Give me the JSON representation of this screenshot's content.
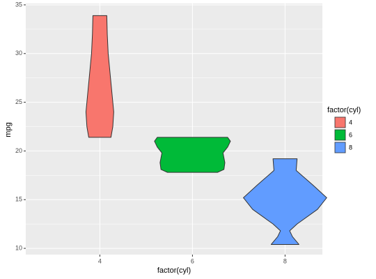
{
  "chart_data": {
    "type": "violin",
    "x_label": "factor(cyl)",
    "y_label": "mpg",
    "categories": [
      "4",
      "6",
      "8"
    ],
    "legend_title": "factor(cyl)",
    "legend_position": "right",
    "ylim": [
      9.36,
      35.14
    ],
    "yticks": [
      10,
      15,
      20,
      25,
      30,
      35
    ],
    "grid": true,
    "minor_grid": true,
    "series": [
      {
        "name": "4",
        "color": "#F8766D",
        "y": [
          21.4,
          22.5,
          24,
          26,
          28,
          30,
          32,
          33.9
        ],
        "width": [
          0.12,
          0.14,
          0.15,
          0.13,
          0.11,
          0.09,
          0.08,
          0.075
        ]
      },
      {
        "name": "6",
        "color": "#00BA38",
        "y": [
          17.8,
          18.1,
          18.8,
          19.8,
          20.4,
          21.0,
          21.4
        ],
        "width": [
          0.27,
          0.34,
          0.35,
          0.33,
          0.38,
          0.41,
          0.38
        ]
      },
      {
        "name": "8",
        "color": "#619CFF",
        "y": [
          10.4,
          11.2,
          11.8,
          12.5,
          14,
          15.2,
          16.5,
          18,
          19.2
        ],
        "width": [
          0.15,
          0.08,
          0.05,
          0.13,
          0.35,
          0.45,
          0.3,
          0.12,
          0.13
        ]
      }
    ]
  }
}
